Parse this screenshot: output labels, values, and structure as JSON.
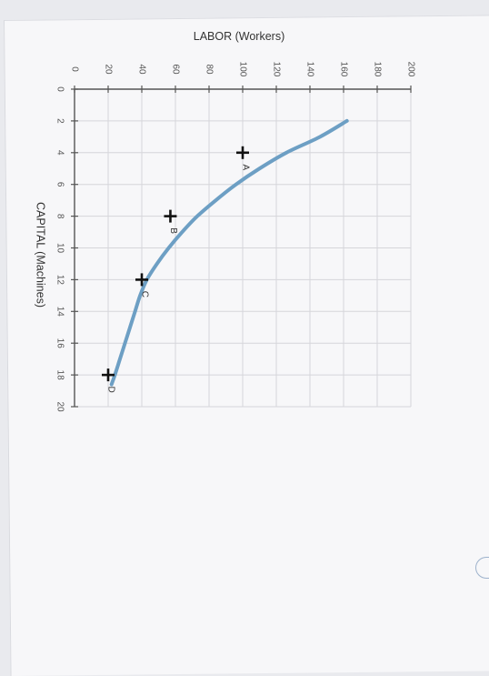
{
  "chart_data": {
    "type": "line",
    "xlabel": "CAPITAL (Machines)",
    "ylabel": "LABOR (Workers)",
    "xlim": [
      0,
      20
    ],
    "ylim": [
      0,
      200
    ],
    "x_ticks": [
      "0",
      "2",
      "4",
      "6",
      "8",
      "10",
      "12",
      "14",
      "16",
      "18",
      "20"
    ],
    "y_ticks": [
      "0",
      "20",
      "40",
      "60",
      "80",
      "100",
      "120",
      "140",
      "160",
      "180",
      "200"
    ],
    "grid": true,
    "orientation": "rotated-90-clockwise",
    "curve": {
      "x": [
        2.0,
        3.0,
        4.0,
        5.0,
        6.0,
        7.0,
        8.0,
        9.0,
        10.0,
        11.0,
        12.0,
        13.0,
        14.0,
        15.0,
        16.0,
        17.0,
        18.0,
        18.6
      ],
      "y": [
        162,
        146,
        126,
        110,
        96,
        84,
        73,
        64,
        56,
        49,
        43,
        39,
        36,
        33,
        30,
        27,
        24,
        22
      ]
    },
    "points": [
      {
        "label": "A",
        "x": 4,
        "y": 100
      },
      {
        "label": "B",
        "x": 8,
        "y": 57
      },
      {
        "label": "C",
        "x": 12,
        "y": 40
      },
      {
        "label": "D",
        "x": 18,
        "y": 20
      }
    ],
    "colors": {
      "curve": "#6d9fc4",
      "marker": "#111111",
      "grid": "#d6d6da"
    }
  }
}
